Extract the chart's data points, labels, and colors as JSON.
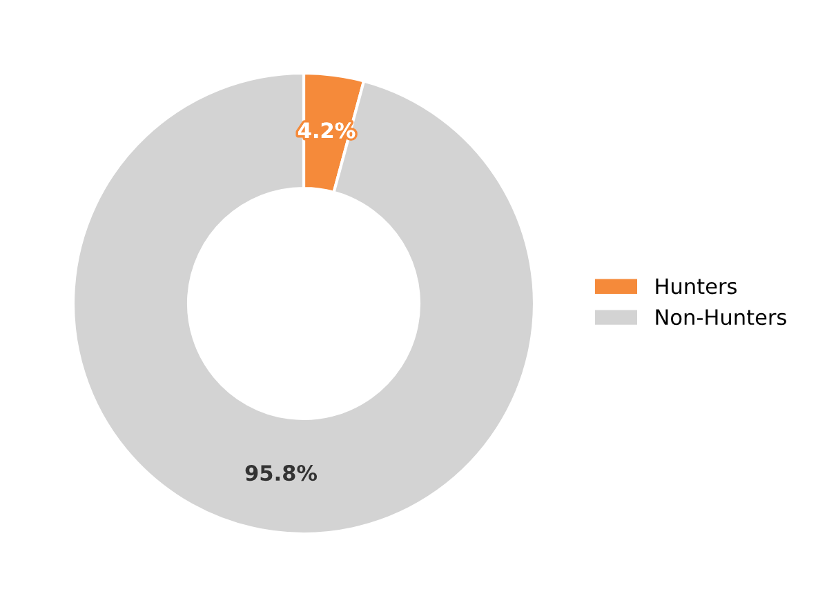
{
  "chart_data": {
    "type": "donut",
    "categories": [
      "Hunters",
      "Non-Hunters"
    ],
    "values": [
      4.2,
      95.8
    ],
    "colors": [
      "#f58a3a",
      "#d3d3d3"
    ],
    "value_labels": [
      "4.2%",
      "95.8%"
    ],
    "legend": "right"
  }
}
